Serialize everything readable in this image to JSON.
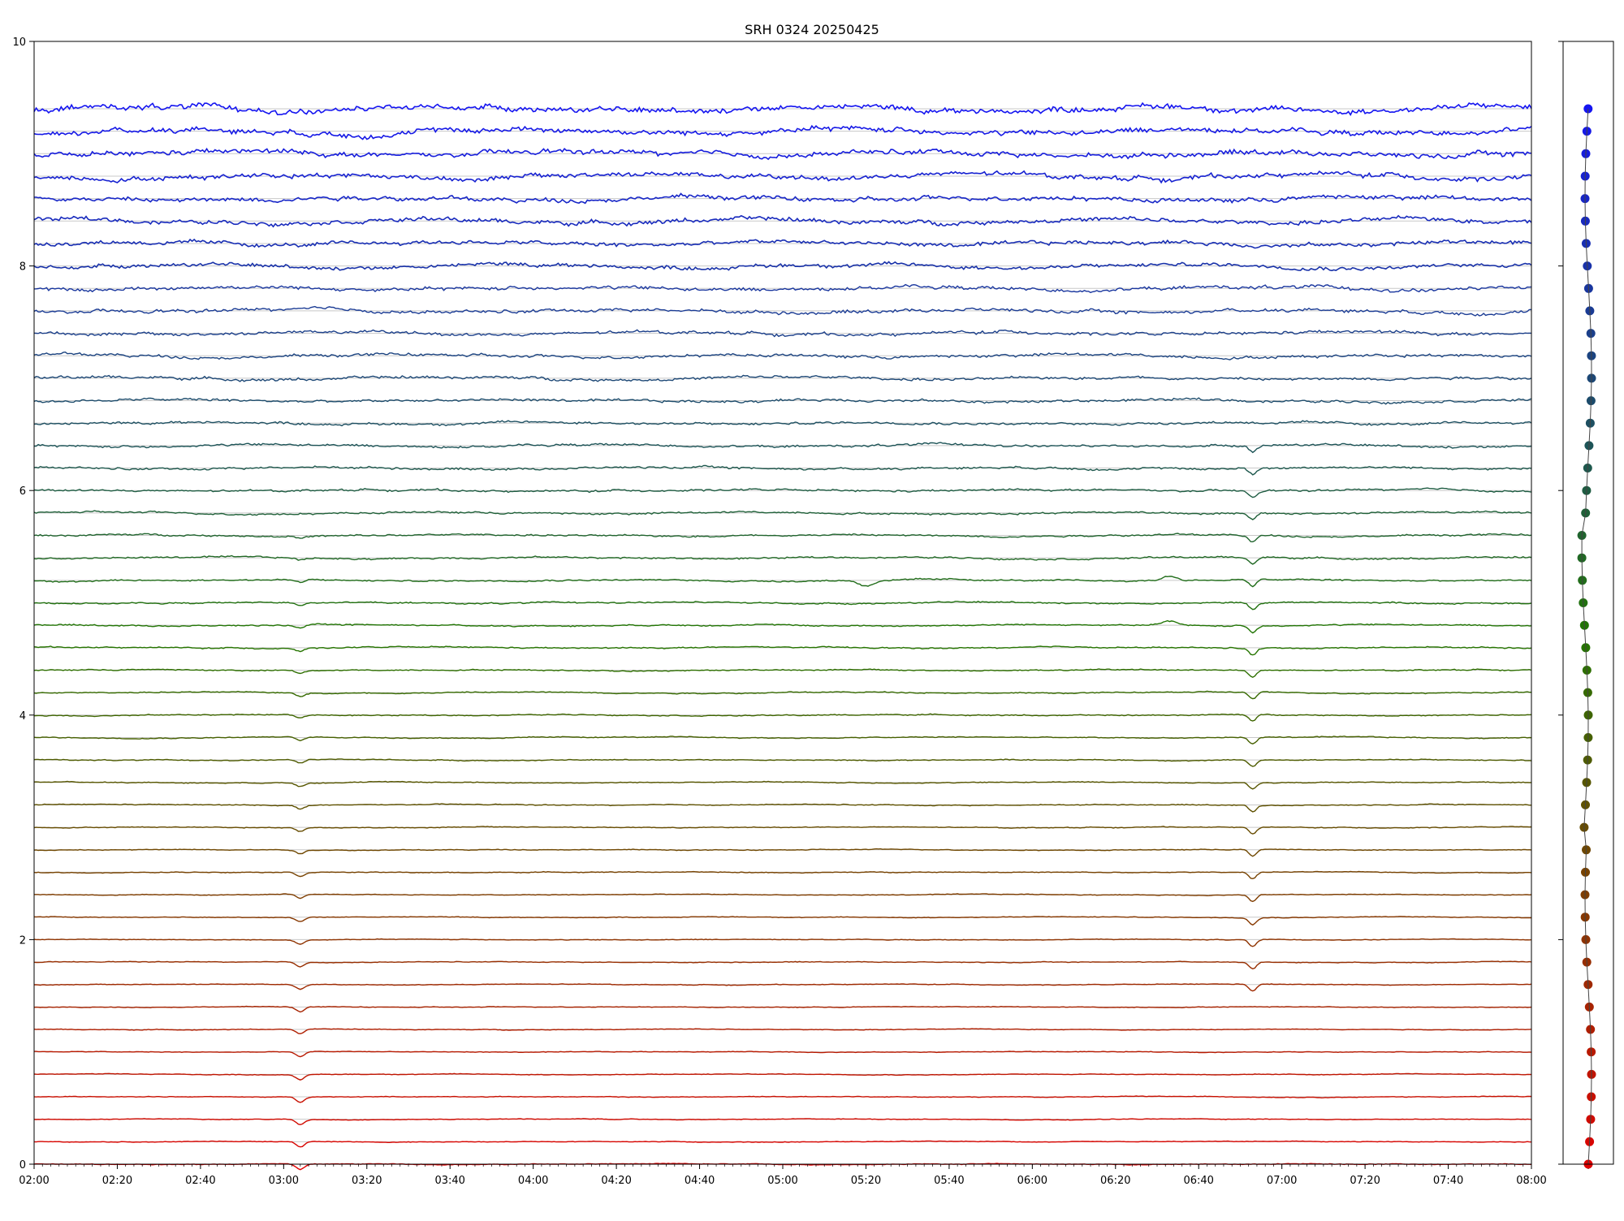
{
  "chart_data": [
    {
      "type": "line",
      "title": "SRH 0324 20250425",
      "xlabel": "",
      "ylabel": "",
      "x_start": "02:00",
      "x_end": "08:00",
      "xlim_minutes": [
        120,
        480
      ],
      "ylim": [
        0,
        10
      ],
      "x_tick_labels": [
        "02:00",
        "02:20",
        "02:40",
        "03:00",
        "03:20",
        "03:40",
        "04:00",
        "04:20",
        "04:40",
        "05:00",
        "05:20",
        "05:40",
        "06:00",
        "06:20",
        "06:40",
        "07:00",
        "07:20",
        "07:40",
        "08:00"
      ],
      "y_ticks": [
        0,
        2,
        4,
        6,
        8,
        10
      ],
      "y_tick_labels": [
        "0",
        "2",
        "4",
        "6",
        "8",
        "10"
      ],
      "grid": "horizontal lines at each trace baseline",
      "legend": "none",
      "series_count": 48,
      "series_baseline_step": 0.2,
      "series_baseline_range": [
        0.0,
        9.4
      ],
      "color_low": "#e00000",
      "color_mid": "#227700",
      "color_high": "#1515f0",
      "events": [
        {
          "time": "03:04",
          "description": "dip on lower traces"
        },
        {
          "time": "06:53",
          "description": "dip on mid traces"
        },
        {
          "time": "05:20",
          "description": "wave on mid trace"
        },
        {
          "time": "06:33",
          "description": "bump on mid trace"
        }
      ]
    },
    {
      "type": "scatter",
      "title": "",
      "ylim": [
        0,
        10
      ],
      "description": "baseline markers for each trace",
      "point_count": 48,
      "y_step": 0.2
    }
  ]
}
